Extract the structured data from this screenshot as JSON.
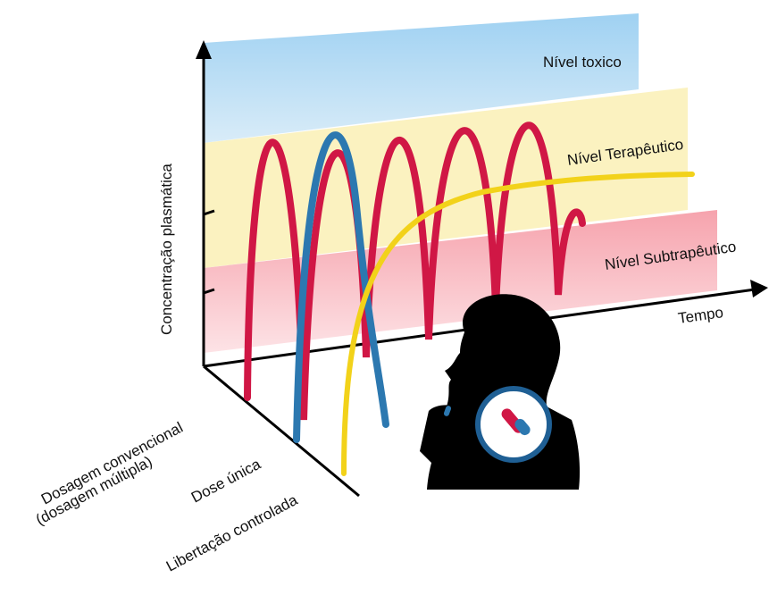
{
  "levels": {
    "toxic": "Nível toxico",
    "therapeutic": "Nível Terapêutico",
    "subtherapeutic": "Nível Subtrapêutico"
  },
  "axes": {
    "y": "Concentração plasmática",
    "x": "Tempo"
  },
  "series": {
    "conventional": [
      "Dosagem convencional",
      "(dosagem múltipla)"
    ],
    "single": "Dose única",
    "controlled": "Libertação controlada"
  }
}
